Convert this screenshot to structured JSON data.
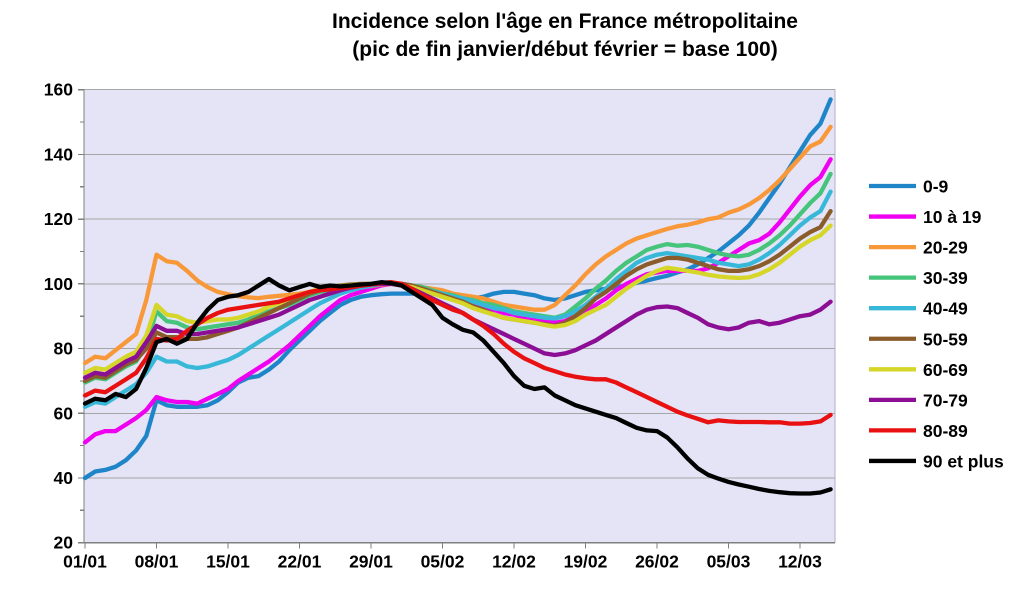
{
  "title": {
    "line1": "Incidence selon l'âge en France métropolitaine",
    "line2": "(pic de fin janvier/début février = base 100)"
  },
  "chart_data": {
    "type": "line",
    "title": "Incidence selon l'âge en France métropolitaine (pic de fin janvier/début février = base 100)",
    "xlabel": "",
    "ylabel": "",
    "ylim": [
      20,
      160
    ],
    "y_tick_labels": [
      "20",
      "40",
      "60",
      "80",
      "100",
      "120",
      "140",
      "160"
    ],
    "y_tick_values": [
      20,
      40,
      60,
      80,
      100,
      120,
      140,
      160
    ],
    "y_minor_tick_values": [
      30,
      50,
      70,
      90,
      110,
      130,
      150
    ],
    "x_tick_labels": [
      "01/01",
      "08/01",
      "15/01",
      "22/01",
      "29/01",
      "05/02",
      "12/02",
      "19/02",
      "26/02",
      "05/03",
      "12/03"
    ],
    "x_tick_days": [
      0,
      7,
      14,
      21,
      28,
      35,
      42,
      49,
      56,
      63,
      70
    ],
    "x_start_label": "01/01",
    "x_cadence": "daily",
    "x_days_total": 73,
    "grid": true,
    "legend_position": "right",
    "plot_bg": "#E4E4F6",
    "grid_color": "#A6A6A6",
    "axis_color": "#7F7F7F",
    "border_color": "#B0B0C4",
    "series": [
      {
        "name": "0-9",
        "color": "#1E86C8",
        "values": [
          40,
          42,
          42.5,
          43.5,
          45.5,
          48.5,
          53,
          64,
          62.5,
          62,
          62,
          62,
          62.5,
          64,
          66.5,
          69.5,
          71,
          71.5,
          73.5,
          76,
          79.5,
          82.5,
          85.5,
          88.5,
          91,
          93.5,
          95,
          96,
          96.5,
          96.8,
          97,
          97,
          97,
          97,
          97,
          97.5,
          96.5,
          96,
          95.5,
          96,
          97,
          97.5,
          97.5,
          97,
          96.5,
          95.5,
          95,
          95.5,
          96.5,
          97.5,
          98,
          98.5,
          99,
          99.5,
          100.3,
          101,
          101.8,
          102.5,
          103.5,
          104.5,
          106,
          108,
          110,
          112.5,
          115,
          118,
          122,
          126.5,
          131,
          136,
          141,
          146,
          149.5,
          157
        ]
      },
      {
        "name": "10 à 19",
        "color": "#F000F0",
        "values": [
          51,
          53.5,
          54.5,
          54.5,
          56.5,
          58.5,
          61,
          65,
          64,
          63.5,
          63.5,
          63,
          64.5,
          66,
          67.5,
          70,
          72,
          74,
          76,
          78.5,
          81,
          84,
          87,
          90,
          92.5,
          95,
          96.5,
          97.5,
          98.5,
          99.5,
          100,
          100,
          99.5,
          99,
          98,
          97,
          96,
          95,
          94,
          93,
          92,
          91,
          90.5,
          89.5,
          89,
          88.5,
          88,
          88.5,
          90,
          91.5,
          93.5,
          95.5,
          98,
          100,
          101.5,
          103,
          103.5,
          104,
          104,
          104,
          104,
          104.8,
          106.5,
          108.5,
          110.5,
          112.5,
          113.5,
          115.5,
          119,
          123,
          127,
          130.5,
          133,
          138.5
        ]
      },
      {
        "name": "20-29",
        "color": "#F89838",
        "values": [
          75.5,
          77.5,
          77,
          79.5,
          82,
          84.5,
          95,
          109,
          107,
          106.5,
          104,
          101,
          99,
          97.5,
          96.8,
          96.2,
          95.8,
          95.6,
          96,
          96.3,
          96.6,
          97,
          97.5,
          98,
          98.3,
          98.5,
          98.8,
          99,
          99.3,
          99.8,
          100,
          100,
          99.5,
          99,
          98.5,
          98,
          97,
          96.5,
          96,
          95.5,
          94.5,
          93.5,
          93,
          92.5,
          92,
          92,
          93.5,
          96.5,
          99.5,
          103,
          106,
          108.5,
          110.5,
          112.5,
          114,
          115,
          116,
          117,
          117.8,
          118.3,
          119,
          120,
          120.5,
          122,
          123,
          124.5,
          126.5,
          129,
          132,
          135.5,
          139,
          142.5,
          144,
          148.5
        ]
      },
      {
        "name": "30-39",
        "color": "#46C47C",
        "values": [
          69.5,
          71,
          70.5,
          72.5,
          74.5,
          76,
          81,
          91.5,
          88.5,
          88,
          86.5,
          86,
          86.5,
          87,
          87.5,
          88,
          89,
          90.5,
          91.5,
          92.5,
          93.5,
          95,
          96.5,
          97.5,
          98,
          98.5,
          99,
          99.3,
          99.6,
          100,
          100,
          100,
          99.5,
          99,
          98,
          97,
          96.5,
          95.5,
          95,
          94,
          93.5,
          92.5,
          91.5,
          91,
          90.5,
          90,
          89.5,
          90.5,
          93,
          95.5,
          98.5,
          101,
          104,
          106.5,
          108.5,
          110.5,
          111.5,
          112.3,
          111.8,
          112,
          111.5,
          110.5,
          109.5,
          108.8,
          108.5,
          109,
          110.5,
          112.5,
          115,
          118,
          121.5,
          125,
          128,
          134
        ]
      },
      {
        "name": "40-49",
        "color": "#38B8D8",
        "values": [
          62,
          63.5,
          63,
          65,
          67,
          69,
          72.5,
          77.5,
          76,
          76,
          74.5,
          74,
          74.5,
          75.5,
          76.5,
          78,
          80,
          82,
          84,
          86,
          88,
          90,
          92,
          94,
          95.5,
          97,
          98,
          98.8,
          99.4,
          100,
          100,
          99.5,
          99,
          98.5,
          97.5,
          97,
          96,
          95.5,
          94.5,
          93.5,
          92.5,
          92,
          91,
          90.5,
          90,
          89.5,
          89.3,
          90,
          91.5,
          93.5,
          96,
          98.5,
          101.5,
          104,
          106.5,
          108,
          109,
          109.5,
          109,
          108.5,
          108,
          107.5,
          106.5,
          106,
          105.5,
          106,
          107.5,
          109.5,
          112,
          115,
          118,
          120.5,
          122.5,
          128.5
        ]
      },
      {
        "name": "50-59",
        "color": "#8B5C2B",
        "values": [
          70,
          71.5,
          71,
          73,
          75,
          76.5,
          80,
          85,
          83.5,
          83.5,
          83,
          83,
          83.5,
          84.5,
          85.5,
          86.5,
          88,
          89.5,
          91,
          92.5,
          94,
          95.5,
          97,
          98,
          99,
          99.5,
          99.8,
          100,
          100,
          100.3,
          100.3,
          100,
          99.5,
          98.5,
          97.5,
          96.5,
          95.5,
          94.5,
          93,
          92,
          90.5,
          89.5,
          89,
          88.5,
          88,
          87.5,
          87,
          88,
          90,
          92.5,
          95.5,
          97.5,
          100,
          102.5,
          104.5,
          106,
          107,
          108,
          108,
          107.5,
          106.5,
          105.5,
          104.5,
          104,
          104,
          104.5,
          105.5,
          107,
          109,
          111.5,
          114,
          116,
          117.5,
          122.5
        ]
      },
      {
        "name": "60-69",
        "color": "#D6D628",
        "values": [
          72.5,
          74,
          73.5,
          75.5,
          77.5,
          79,
          84,
          93.5,
          90.5,
          90,
          88.5,
          88,
          88.5,
          89,
          89,
          89.5,
          90.5,
          91.5,
          93,
          94,
          95.5,
          96.5,
          97.5,
          98.5,
          99,
          99.3,
          99.6,
          99.8,
          100,
          100,
          100,
          99.5,
          99,
          98,
          97,
          96,
          95,
          94,
          92.5,
          91.5,
          90.5,
          89.5,
          89,
          88.5,
          88,
          87.3,
          86.8,
          87.3,
          88.5,
          90.5,
          92,
          93.5,
          96,
          98.5,
          100.5,
          102.5,
          104,
          105,
          104.5,
          104,
          103.5,
          102.8,
          102.3,
          102,
          101.8,
          102,
          103,
          104.5,
          106.5,
          109,
          111.5,
          113.5,
          115,
          118
        ]
      },
      {
        "name": "70-79",
        "color": "#8B0E95",
        "values": [
          71,
          72.5,
          72,
          74,
          76,
          77.5,
          82,
          87,
          85.5,
          85.5,
          84.5,
          84.5,
          85,
          85.5,
          86,
          86.5,
          87.5,
          88.5,
          89.5,
          90.5,
          92,
          93.5,
          95,
          96,
          97,
          98,
          98.8,
          99.4,
          99.8,
          100,
          100,
          99.5,
          98.5,
          97,
          95.5,
          94,
          92.5,
          91,
          89,
          87.5,
          86,
          84.5,
          83,
          81.5,
          80,
          78.5,
          78,
          78.5,
          79.5,
          81,
          82.5,
          84.5,
          86.5,
          88.5,
          90.5,
          92,
          92.8,
          93,
          92.5,
          91,
          89.5,
          87.5,
          86.5,
          86,
          86.5,
          88,
          88.5,
          87.5,
          88,
          89,
          90,
          90.5,
          92,
          94.5
        ]
      },
      {
        "name": "80-89",
        "color": "#E81010",
        "values": [
          65.5,
          67,
          66.5,
          68.5,
          70.5,
          72.5,
          77,
          83,
          82.5,
          83,
          85.5,
          87.5,
          89.5,
          91,
          92,
          92.5,
          93,
          93.5,
          94,
          94.5,
          95.5,
          96.5,
          97.5,
          98,
          98.3,
          98.7,
          99,
          99.4,
          99.8,
          100.3,
          100.5,
          100,
          98.5,
          96.5,
          95,
          93.5,
          92,
          91,
          89,
          87,
          84.5,
          81.5,
          79,
          77,
          75.5,
          74,
          73,
          72,
          71.3,
          70.8,
          70.5,
          70.5,
          69.5,
          68,
          66.5,
          65,
          63.5,
          62,
          60.5,
          59.3,
          58.3,
          57.2,
          57.8,
          57.5,
          57.3,
          57.3,
          57.3,
          57.2,
          57.2,
          56.8,
          56.8,
          57,
          57.5,
          59.5
        ]
      },
      {
        "name": "90 et plus",
        "color": "#000000",
        "values": [
          63,
          64.5,
          64,
          66,
          65,
          67.5,
          74,
          82,
          83,
          81.5,
          83,
          88,
          92,
          95,
          96,
          96.5,
          97.5,
          99.5,
          101.5,
          99.5,
          98,
          99,
          100,
          99,
          99.5,
          99.2,
          99.5,
          99.8,
          100,
          100.5,
          100.2,
          99.5,
          97.5,
          95.5,
          93.5,
          89.5,
          87.5,
          85.8,
          85,
          82.5,
          79,
          75.5,
          71.5,
          68.5,
          67.5,
          68,
          65.5,
          64,
          62.5,
          61.5,
          60.5,
          59.5,
          58.5,
          57,
          55.5,
          54.7,
          54.5,
          52.5,
          49.5,
          46,
          43,
          41,
          39.8,
          38.8,
          38,
          37.3,
          36.6,
          36,
          35.6,
          35.3,
          35.2,
          35.2,
          35.5,
          36.5
        ]
      }
    ]
  }
}
